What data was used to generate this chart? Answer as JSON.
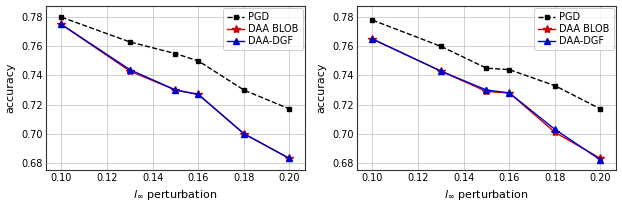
{
  "x_ticks": [
    0.1,
    0.12,
    0.14,
    0.16,
    0.18,
    0.2
  ],
  "x_data": [
    0.1,
    0.13,
    0.15,
    0.16,
    0.18,
    0.2
  ],
  "left": {
    "pgd": [
      0.78,
      0.763,
      0.755,
      0.75,
      0.73,
      0.717
    ],
    "daa_blob": [
      0.775,
      0.743,
      0.73,
      0.727,
      0.7,
      0.683
    ],
    "daa_dgf": [
      0.775,
      0.744,
      0.73,
      0.727,
      0.7,
      0.683
    ],
    "ylim": [
      0.675,
      0.788
    ],
    "yticks": [
      0.68,
      0.7,
      0.72,
      0.74,
      0.76,
      0.78
    ]
  },
  "right": {
    "pgd": [
      0.778,
      0.76,
      0.745,
      0.744,
      0.733,
      0.717
    ],
    "daa_blob": [
      0.765,
      0.743,
      0.729,
      0.728,
      0.701,
      0.683
    ],
    "daa_dgf": [
      0.765,
      0.743,
      0.73,
      0.728,
      0.703,
      0.682
    ],
    "ylim": [
      0.675,
      0.788
    ],
    "yticks": [
      0.68,
      0.7,
      0.72,
      0.74,
      0.76,
      0.78
    ]
  },
  "colors": {
    "pgd": "#000000",
    "daa_blob": "#cc0000",
    "daa_dgf": "#0000cc"
  },
  "legend_labels": [
    "PGD",
    "DAA BLOB",
    "DAA-DGF"
  ],
  "xlabel": "$l_{\\infty}$ perturbation",
  "ylabel": "accuracy",
  "figsize": [
    6.22,
    2.08
  ],
  "dpi": 100
}
